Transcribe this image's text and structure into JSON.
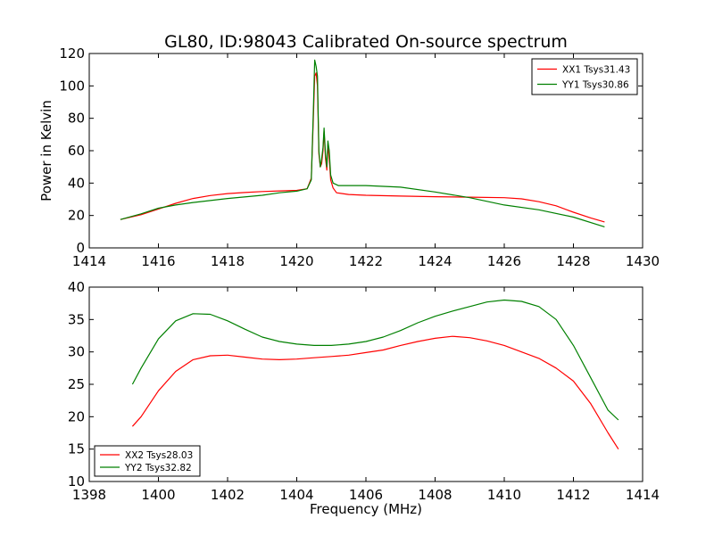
{
  "figure": {
    "title": "GL80, ID:98043 Calibrated On-source spectrum",
    "shared_xlabel": "Frequency (MHz)"
  },
  "colors": {
    "red": "#ff0000",
    "green": "#008000"
  },
  "chart_data": [
    {
      "type": "line",
      "title": "GL80, ID:98043 Calibrated On-source spectrum",
      "xlabel": "",
      "ylabel": "Power in Kelvin",
      "xlim": [
        1414,
        1430
      ],
      "ylim": [
        0,
        120
      ],
      "xticks": [
        1414,
        1416,
        1418,
        1420,
        1422,
        1424,
        1426,
        1428,
        1430
      ],
      "yticks": [
        0,
        20,
        40,
        60,
        80,
        100,
        120
      ],
      "grid": false,
      "legend_position": "top-right",
      "series": [
        {
          "name": "XX1 Tsys31.43",
          "color": "#ff0000",
          "points": [
            [
              1414.9,
              17.5
            ],
            [
              1415.5,
              20.5
            ],
            [
              1416,
              24
            ],
            [
              1416.5,
              27.5
            ],
            [
              1417,
              30.5
            ],
            [
              1417.5,
              32.3
            ],
            [
              1418,
              33.5
            ],
            [
              1418.5,
              34.2
            ],
            [
              1419,
              34.8
            ],
            [
              1419.5,
              35.2
            ],
            [
              1420,
              35.5
            ],
            [
              1420.3,
              36.5
            ],
            [
              1420.42,
              43
            ],
            [
              1420.48,
              80
            ],
            [
              1420.52,
              106
            ],
            [
              1420.56,
              108
            ],
            [
              1420.6,
              100
            ],
            [
              1420.64,
              58
            ],
            [
              1420.68,
              50
            ],
            [
              1420.72,
              52
            ],
            [
              1420.76,
              60
            ],
            [
              1420.79,
              72
            ],
            [
              1420.83,
              55
            ],
            [
              1420.87,
              48
            ],
            [
              1420.9,
              64
            ],
            [
              1420.94,
              55
            ],
            [
              1420.98,
              42
            ],
            [
              1421.05,
              37
            ],
            [
              1421.15,
              34
            ],
            [
              1421.5,
              33
            ],
            [
              1422,
              32.5
            ],
            [
              1423,
              32
            ],
            [
              1424,
              31.6
            ],
            [
              1425,
              31.3
            ],
            [
              1426,
              31
            ],
            [
              1426.5,
              30.3
            ],
            [
              1427,
              28.5
            ],
            [
              1427.5,
              26
            ],
            [
              1428,
              22
            ],
            [
              1428.5,
              18.5
            ],
            [
              1428.9,
              16
            ]
          ]
        },
        {
          "name": "YY1 Tsys30.86",
          "color": "#008000",
          "points": [
            [
              1414.9,
              17.5
            ],
            [
              1415.5,
              21
            ],
            [
              1416,
              24.5
            ],
            [
              1416.5,
              26.5
            ],
            [
              1417,
              28
            ],
            [
              1418,
              30.5
            ],
            [
              1419,
              32.5
            ],
            [
              1419.5,
              34
            ],
            [
              1420,
              35
            ],
            [
              1420.3,
              36.5
            ],
            [
              1420.42,
              42
            ],
            [
              1420.48,
              85
            ],
            [
              1420.52,
              116
            ],
            [
              1420.56,
              112
            ],
            [
              1420.6,
              106
            ],
            [
              1420.64,
              60
            ],
            [
              1420.68,
              50
            ],
            [
              1420.72,
              55
            ],
            [
              1420.76,
              62
            ],
            [
              1420.79,
              74
            ],
            [
              1420.83,
              58
            ],
            [
              1420.87,
              50
            ],
            [
              1420.9,
              66
            ],
            [
              1420.94,
              60
            ],
            [
              1420.98,
              45
            ],
            [
              1421.05,
              40
            ],
            [
              1421.2,
              38.5
            ],
            [
              1422,
              38.5
            ],
            [
              1423,
              37.5
            ],
            [
              1424,
              34.5
            ],
            [
              1425,
              31
            ],
            [
              1426,
              26.5
            ],
            [
              1427,
              23.5
            ],
            [
              1428,
              19
            ],
            [
              1428.9,
              13
            ]
          ]
        }
      ]
    },
    {
      "type": "line",
      "title": "",
      "xlabel": "Frequency (MHz)",
      "ylabel": "",
      "xlim": [
        1398,
        1414
      ],
      "ylim": [
        10,
        40
      ],
      "xticks": [
        1398,
        1400,
        1402,
        1404,
        1406,
        1408,
        1410,
        1412,
        1414
      ],
      "yticks": [
        10,
        15,
        20,
        25,
        30,
        35,
        40
      ],
      "grid": false,
      "legend_position": "bottom-left",
      "series": [
        {
          "name": "XX2 Tsys28.03",
          "color": "#ff0000",
          "points": [
            [
              1399.25,
              18.5
            ],
            [
              1399.5,
              20
            ],
            [
              1400,
              24
            ],
            [
              1400.5,
              27
            ],
            [
              1401,
              28.8
            ],
            [
              1401.5,
              29.4
            ],
            [
              1402,
              29.5
            ],
            [
              1402.5,
              29.2
            ],
            [
              1403,
              28.9
            ],
            [
              1403.5,
              28.8
            ],
            [
              1404,
              28.9
            ],
            [
              1404.5,
              29.1
            ],
            [
              1405,
              29.3
            ],
            [
              1405.5,
              29.5
            ],
            [
              1406,
              29.9
            ],
            [
              1406.5,
              30.3
            ],
            [
              1407,
              31
            ],
            [
              1407.5,
              31.6
            ],
            [
              1408,
              32.1
            ],
            [
              1408.5,
              32.4
            ],
            [
              1409,
              32.2
            ],
            [
              1409.5,
              31.7
            ],
            [
              1410,
              31
            ],
            [
              1410.5,
              30
            ],
            [
              1411,
              29
            ],
            [
              1411.5,
              27.5
            ],
            [
              1412,
              25.5
            ],
            [
              1412.5,
              22
            ],
            [
              1413,
              17.5
            ],
            [
              1413.3,
              15
            ]
          ]
        },
        {
          "name": "YY2 Tsys32.82",
          "color": "#008000",
          "points": [
            [
              1399.25,
              25
            ],
            [
              1399.5,
              27.5
            ],
            [
              1400,
              32
            ],
            [
              1400.5,
              34.8
            ],
            [
              1401,
              35.9
            ],
            [
              1401.5,
              35.8
            ],
            [
              1402,
              34.8
            ],
            [
              1402.5,
              33.5
            ],
            [
              1403,
              32.3
            ],
            [
              1403.5,
              31.6
            ],
            [
              1404,
              31.2
            ],
            [
              1404.5,
              31
            ],
            [
              1405,
              31
            ],
            [
              1405.5,
              31.2
            ],
            [
              1406,
              31.6
            ],
            [
              1406.5,
              32.3
            ],
            [
              1407,
              33.3
            ],
            [
              1407.5,
              34.5
            ],
            [
              1408,
              35.5
            ],
            [
              1408.5,
              36.3
            ],
            [
              1409,
              37
            ],
            [
              1409.5,
              37.7
            ],
            [
              1410,
              38
            ],
            [
              1410.5,
              37.8
            ],
            [
              1411,
              37
            ],
            [
              1411.5,
              35
            ],
            [
              1412,
              31
            ],
            [
              1412.5,
              26
            ],
            [
              1413,
              21
            ],
            [
              1413.3,
              19.5
            ]
          ]
        }
      ]
    }
  ]
}
